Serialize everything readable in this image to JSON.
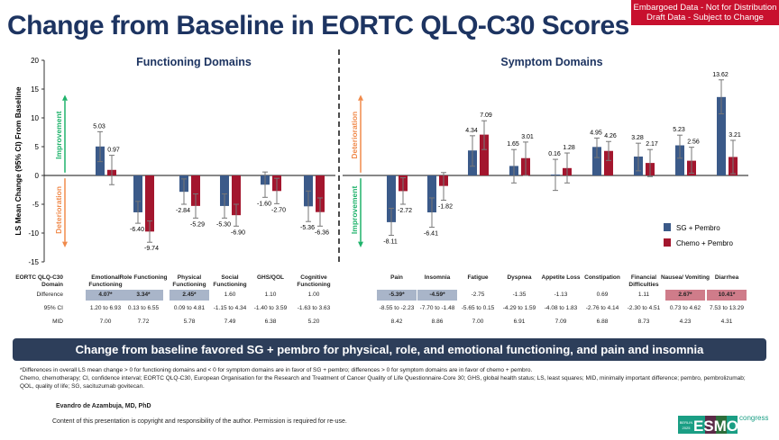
{
  "header": {
    "title": "Change from Baseline in EORTC QLQ-C30 Scores",
    "embargo_line1": "Embargoed Data - Not for Distribution",
    "embargo_line2": "Draft Data - Subject to Change"
  },
  "chart_data": {
    "type": "bar",
    "ylabel": "LS Mean Change (95% CI) From Baseline",
    "ylim": [
      -15,
      20
    ],
    "yticks": [
      "20",
      "15",
      "10",
      "5",
      "0",
      "-5",
      "-10",
      "-15"
    ],
    "panels": [
      {
        "title": "Functioning Domains",
        "up_label": "Improvement",
        "down_label": "Deterioration",
        "up_color": "#1fb36b",
        "down_color": "#f08a4b"
      },
      {
        "title": "Symptom Domains",
        "up_label": "Deterioration",
        "down_label": "Improvement",
        "up_color": "#f08a4b",
        "down_color": "#1fb36b"
      }
    ],
    "legend": {
      "position": "right",
      "entries": [
        "SG + Pembro",
        "Chemo + Pembro"
      ]
    },
    "colors": {
      "sg": "#3b5a89",
      "chemo": "#a3162e"
    },
    "categories": [
      "Emotional Functioning",
      "Role Functioning",
      "Physical Functioning",
      "Social Functioning",
      "GHS/QOL",
      "Cognitive Functioning",
      "Pain",
      "Insomnia",
      "Fatigue",
      "Dyspnea",
      "Appetite Loss",
      "Constipation",
      "Financial Difficulties",
      "Nausea/ Vomiting",
      "Diarrhea"
    ],
    "series": [
      {
        "name": "SG + Pembro",
        "values": [
          5.03,
          -6.4,
          -2.84,
          -5.3,
          -1.6,
          -5.36,
          -8.11,
          -6.41,
          4.34,
          1.65,
          0.16,
          4.95,
          3.28,
          5.23,
          13.62
        ],
        "labels": [
          "5.03",
          "-6.40",
          "-2.84",
          "-5.30",
          "-1.60",
          "-5.36",
          "-8.11",
          "-6.41",
          "4.34",
          "1.65",
          "0.16",
          "4.95",
          "3.28",
          "5.23",
          "13.62"
        ],
        "ci_low": [
          2.4,
          -8.3,
          -5.0,
          -7.4,
          -3.8,
          -8.0,
          -10.4,
          -9.0,
          1.6,
          -1.3,
          -2.6,
          3.1,
          0.8,
          3.0,
          10.7
        ],
        "ci_high": [
          7.6,
          -4.5,
          -0.6,
          -3.2,
          0.6,
          -2.7,
          -5.7,
          -3.9,
          6.9,
          4.5,
          2.8,
          6.5,
          5.6,
          7.0,
          16.6
        ]
      },
      {
        "name": "Chemo + Pembro",
        "values": [
          0.97,
          -9.74,
          -5.29,
          -6.9,
          -2.7,
          -6.36,
          -2.72,
          -1.82,
          7.09,
          3.01,
          1.28,
          4.26,
          2.17,
          2.56,
          3.21
        ],
        "labels": [
          "0.97",
          "-9.74",
          "-5.29",
          "-6.90",
          "-2.70",
          "-6.36",
          "-2.72",
          "-1.82",
          "7.09",
          "3.01",
          "1.28",
          "4.26",
          "2.17",
          "2.56",
          "3.21"
        ],
        "ci_low": [
          -1.6,
          -11.6,
          -7.4,
          -8.8,
          -4.9,
          -8.8,
          -5.0,
          -4.3,
          4.5,
          0,
          -1.3,
          2.6,
          -0.2,
          0.4,
          0.3
        ],
        "ci_high": [
          3.5,
          -7.9,
          -3.2,
          -5.0,
          -0.5,
          -3.9,
          -0.4,
          0.5,
          9.5,
          5.8,
          3.9,
          5.9,
          4.5,
          4.9,
          6.1
        ]
      }
    ]
  },
  "table": {
    "row_labels": {
      "domain": "EORTC QLQ-C30 Domain",
      "difference": "Difference",
      "ci": "95% CI",
      "mid": "MID"
    },
    "highlight_colors": {
      "sg": "#a9b5c9",
      "chemo": "#cf7c8a"
    },
    "columns": [
      {
        "domain": "Emotional Functioning",
        "difference": "4.07*",
        "ci": "1.20 to 6.93",
        "mid": "7.00",
        "favors": "sg"
      },
      {
        "domain": "Role Functioning",
        "difference": "3.34*",
        "ci": "0.13 to 6.55",
        "mid": "7.72",
        "favors": "sg"
      },
      {
        "domain": "Physical Functioning",
        "difference": "2.45*",
        "ci": "0.09 to 4.81",
        "mid": "5.78",
        "favors": "sg"
      },
      {
        "domain": "Social Functioning",
        "difference": "1.60",
        "ci": "-1.15 to 4.34",
        "mid": "7.49",
        "favors": ""
      },
      {
        "domain": "GHS/QOL",
        "difference": "1.10",
        "ci": "-1.40 to 3.59",
        "mid": "6.38",
        "favors": ""
      },
      {
        "domain": "Cognitive Functioning",
        "difference": "1.00",
        "ci": "-1.63 to 3.63",
        "mid": "5.20",
        "favors": ""
      },
      {
        "domain": "Pain",
        "difference": "-5.39*",
        "ci": "-8.55 to -2.23",
        "mid": "8.42",
        "favors": "sg"
      },
      {
        "domain": "Insomnia",
        "difference": "-4.59*",
        "ci": "-7.70 to -1.48",
        "mid": "8.86",
        "favors": "sg"
      },
      {
        "domain": "Fatigue",
        "difference": "-2.75",
        "ci": "-5.65 to 0.15",
        "mid": "7.00",
        "favors": ""
      },
      {
        "domain": "Dyspnea",
        "difference": "-1.35",
        "ci": "-4.29 to 1.59",
        "mid": "6.91",
        "favors": ""
      },
      {
        "domain": "Appetite Loss",
        "difference": "-1.13",
        "ci": "-4.08 to 1.83",
        "mid": "7.09",
        "favors": ""
      },
      {
        "domain": "Constipation",
        "difference": "0.69",
        "ci": "-2.76 to 4.14",
        "mid": "6.88",
        "favors": ""
      },
      {
        "domain": "Financial Difficulties",
        "difference": "1.11",
        "ci": "-2.30 to 4.51",
        "mid": "8.73",
        "favors": ""
      },
      {
        "domain": "Nausea/ Vomiting",
        "difference": "2.67*",
        "ci": "0.73 to 4.62",
        "mid": "4.23",
        "favors": "chemo"
      },
      {
        "domain": "Diarrhea",
        "difference": "10.41*",
        "ci": "7.53 to 13.29",
        "mid": "4.31",
        "favors": "chemo"
      }
    ]
  },
  "banner": "Change from baseline favored SG + pembro for physical, role, and emotional functioning, and pain and insomnia",
  "footnotes": [
    "*Differences in overall LS mean change > 0 for functioning domains and < 0 for symptom domains are in favor of SG + pembro; differences > 0 for symptom domains are in favor of chemo + pembro.",
    "Chemo, chemotherapy; CI, confidence interval; EORTC QLQ-C30, European Organisation for the Research and Treatment of Cancer Quality of Life Questionnaire-Core 30; GHS, global health status; LS, least squares; MID, minimally important difference; pembro, pembrolizumab; QOL, quality of life; SG, sacituzumab govitecan."
  ],
  "presenter": "Evandro de Azambuja, MD, PhD",
  "copyright": "Content of this presentation is copyright and responsibility of the author. Permission is required for re-use.",
  "logo": {
    "city": "BERLIN",
    "year": "2025",
    "brand": "ESMO",
    "suffix": "congress"
  }
}
